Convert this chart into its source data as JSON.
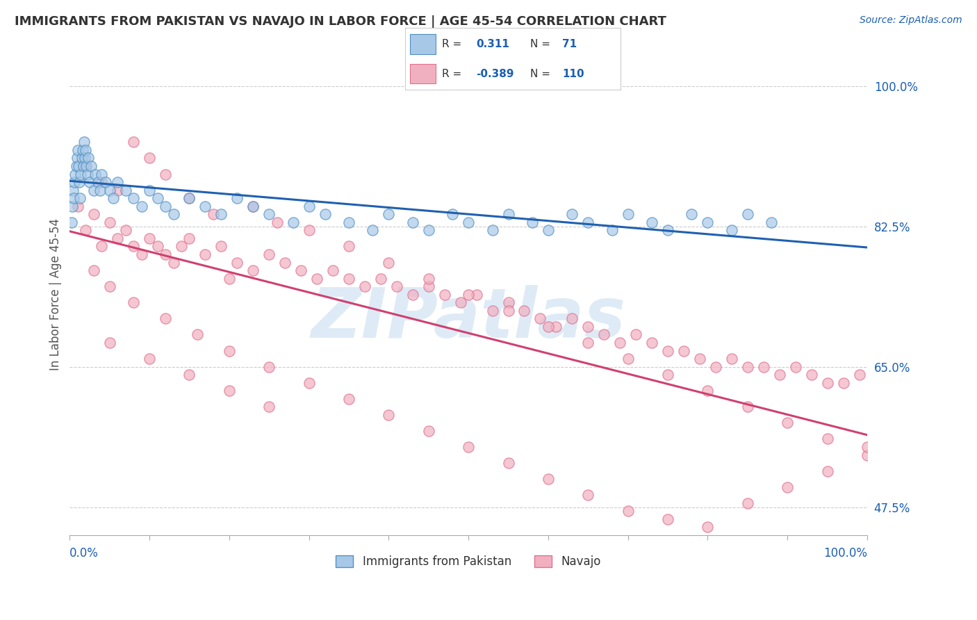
{
  "title": "IMMIGRANTS FROM PAKISTAN VS NAVAJO IN LABOR FORCE | AGE 45-54 CORRELATION CHART",
  "source": "Source: ZipAtlas.com",
  "ylabel": "In Labor Force | Age 45-54",
  "yticks": [
    47.5,
    65.0,
    82.5,
    100.0
  ],
  "ytick_labels": [
    "47.5%",
    "65.0%",
    "82.5%",
    "100.0%"
  ],
  "xlim": [
    0.0,
    100.0
  ],
  "ylim": [
    44.0,
    104.0
  ],
  "series1_name": "Immigrants from Pakistan",
  "series1_R": "0.311",
  "series1_N": "71",
  "series2_name": "Navajo",
  "series2_R": "-0.389",
  "series2_N": "110",
  "series1_face_color": "#A8C8E8",
  "series1_edge_color": "#5090C0",
  "series2_face_color": "#F0B0C0",
  "series2_edge_color": "#E07090",
  "trend1_color": "#2060B0",
  "trend2_color": "#D04070",
  "watermark": "ZIPatlas",
  "watermark_color": "#C8DFF0",
  "legend_text_color": "#1a5fb4",
  "background_color": "#ffffff",
  "pakistan_x": [
    0.2,
    0.3,
    0.4,
    0.5,
    0.6,
    0.7,
    0.8,
    0.9,
    1.0,
    1.1,
    1.2,
    1.3,
    1.4,
    1.5,
    1.6,
    1.7,
    1.8,
    1.9,
    2.0,
    2.1,
    2.2,
    2.3,
    2.5,
    2.7,
    3.0,
    3.2,
    3.5,
    3.8,
    4.0,
    4.5,
    5.0,
    5.5,
    6.0,
    7.0,
    8.0,
    9.0,
    10.0,
    11.0,
    12.0,
    13.0,
    15.0,
    17.0,
    19.0,
    21.0,
    23.0,
    25.0,
    28.0,
    30.0,
    32.0,
    35.0,
    38.0,
    40.0,
    43.0,
    45.0,
    48.0,
    50.0,
    53.0,
    55.0,
    58.0,
    60.0,
    63.0,
    65.0,
    68.0,
    70.0,
    73.0,
    75.0,
    78.0,
    80.0,
    83.0,
    85.0,
    88.0
  ],
  "pakistan_y": [
    83.0,
    85.0,
    87.0,
    86.0,
    88.0,
    89.0,
    90.0,
    91.0,
    92.0,
    90.0,
    88.0,
    86.0,
    89.0,
    91.0,
    92.0,
    90.0,
    93.0,
    91.0,
    92.0,
    90.0,
    89.0,
    91.0,
    88.0,
    90.0,
    87.0,
    89.0,
    88.0,
    87.0,
    89.0,
    88.0,
    87.0,
    86.0,
    88.0,
    87.0,
    86.0,
    85.0,
    87.0,
    86.0,
    85.0,
    84.0,
    86.0,
    85.0,
    84.0,
    86.0,
    85.0,
    84.0,
    83.0,
    85.0,
    84.0,
    83.0,
    82.0,
    84.0,
    83.0,
    82.0,
    84.0,
    83.0,
    82.0,
    84.0,
    83.0,
    82.0,
    84.0,
    83.0,
    82.0,
    84.0,
    83.0,
    82.0,
    84.0,
    83.0,
    82.0,
    84.0,
    83.0
  ],
  "navajo_x": [
    1.0,
    2.0,
    3.0,
    4.0,
    5.0,
    6.0,
    7.0,
    8.0,
    9.0,
    10.0,
    11.0,
    12.0,
    13.0,
    14.0,
    15.0,
    17.0,
    19.0,
    21.0,
    23.0,
    25.0,
    27.0,
    29.0,
    31.0,
    33.0,
    35.0,
    37.0,
    39.0,
    41.0,
    43.0,
    45.0,
    47.0,
    49.0,
    51.0,
    53.0,
    55.0,
    57.0,
    59.0,
    61.0,
    63.0,
    65.0,
    67.0,
    69.0,
    71.0,
    73.0,
    75.0,
    77.0,
    79.0,
    81.0,
    83.0,
    85.0,
    87.0,
    89.0,
    91.0,
    93.0,
    95.0,
    97.0,
    99.0,
    2.0,
    4.0,
    6.0,
    8.0,
    10.0,
    12.0,
    15.0,
    18.0,
    20.0,
    23.0,
    26.0,
    30.0,
    35.0,
    40.0,
    45.0,
    50.0,
    55.0,
    60.0,
    65.0,
    70.0,
    75.0,
    80.0,
    85.0,
    90.0,
    95.0,
    100.0,
    3.0,
    5.0,
    8.0,
    12.0,
    16.0,
    20.0,
    25.0,
    30.0,
    35.0,
    40.0,
    45.0,
    50.0,
    55.0,
    60.0,
    65.0,
    70.0,
    75.0,
    80.0,
    85.0,
    90.0,
    95.0,
    100.0,
    5.0,
    10.0,
    15.0,
    20.0,
    25.0
  ],
  "navajo_y": [
    85.0,
    82.0,
    84.0,
    80.0,
    83.0,
    81.0,
    82.0,
    80.0,
    79.0,
    81.0,
    80.0,
    79.0,
    78.0,
    80.0,
    81.0,
    79.0,
    80.0,
    78.0,
    77.0,
    79.0,
    78.0,
    77.0,
    76.0,
    77.0,
    76.0,
    75.0,
    76.0,
    75.0,
    74.0,
    75.0,
    74.0,
    73.0,
    74.0,
    72.0,
    73.0,
    72.0,
    71.0,
    70.0,
    71.0,
    70.0,
    69.0,
    68.0,
    69.0,
    68.0,
    67.0,
    67.0,
    66.0,
    65.0,
    66.0,
    65.0,
    65.0,
    64.0,
    65.0,
    64.0,
    63.0,
    63.0,
    64.0,
    90.0,
    88.0,
    87.0,
    93.0,
    91.0,
    89.0,
    86.0,
    84.0,
    76.0,
    85.0,
    83.0,
    82.0,
    80.0,
    78.0,
    76.0,
    74.0,
    72.0,
    70.0,
    68.0,
    66.0,
    64.0,
    62.0,
    60.0,
    58.0,
    56.0,
    54.0,
    77.0,
    75.0,
    73.0,
    71.0,
    69.0,
    67.0,
    65.0,
    63.0,
    61.0,
    59.0,
    57.0,
    55.0,
    53.0,
    51.0,
    49.0,
    47.0,
    46.0,
    45.0,
    48.0,
    50.0,
    52.0,
    55.0,
    68.0,
    66.0,
    64.0,
    62.0,
    60.0
  ]
}
